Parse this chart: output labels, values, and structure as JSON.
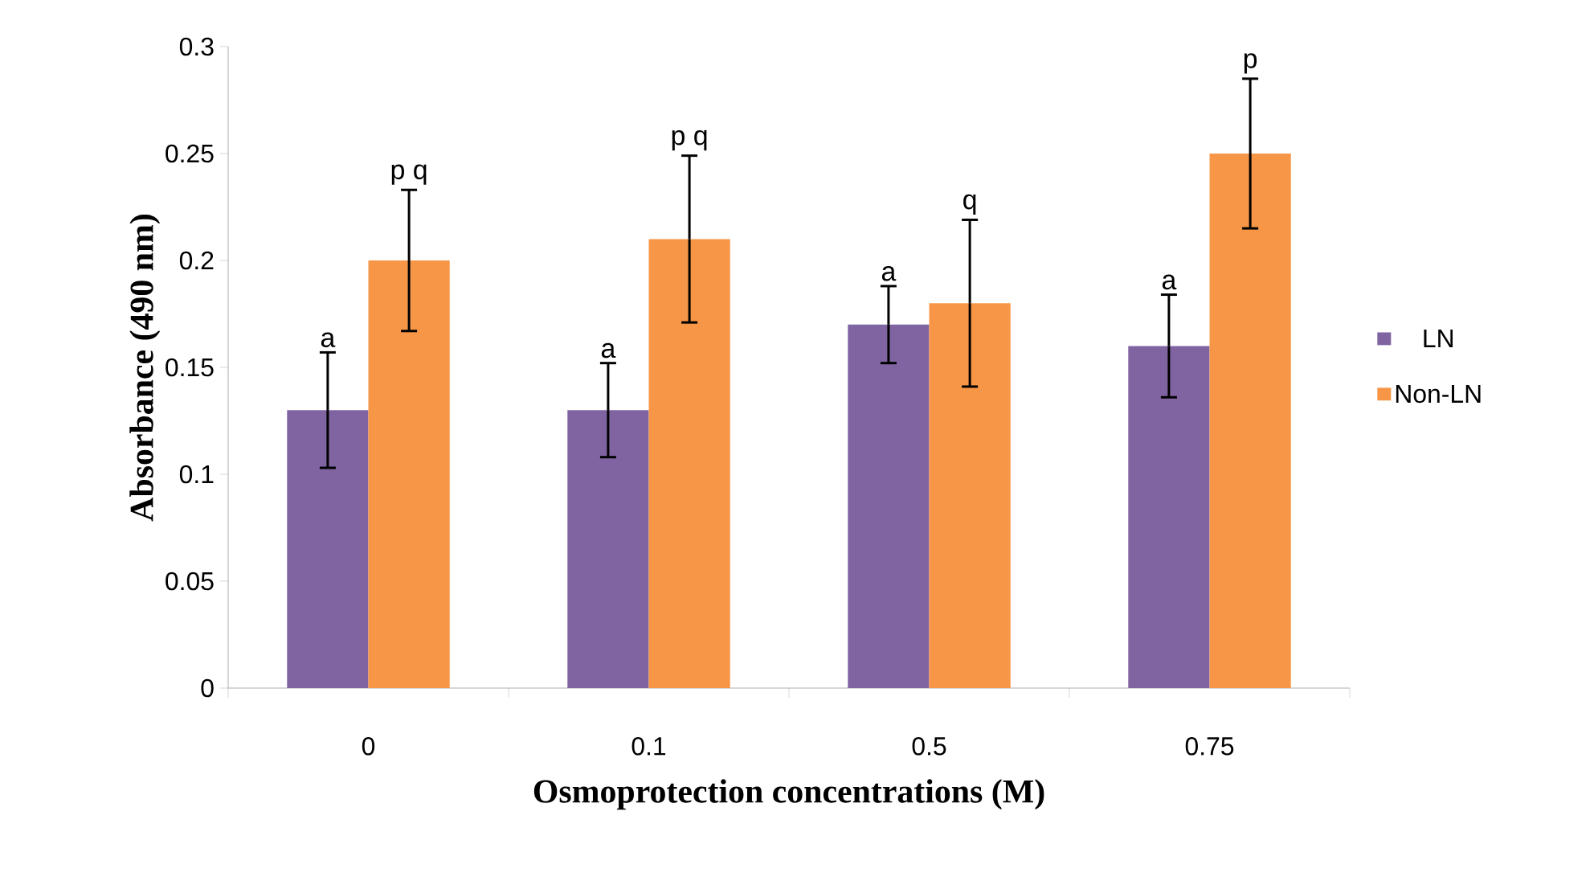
{
  "chart_data": {
    "type": "bar",
    "xlabel": "Osmoprotection concentrations (M)",
    "ylabel": "Absorbance (490 nm)",
    "categories": [
      "0",
      "0.1",
      "0.5",
      "0.75"
    ],
    "series": [
      {
        "name": "LN",
        "color": "#8064a2",
        "values": [
          0.13,
          0.13,
          0.17,
          0.16
        ],
        "errors": [
          0.027,
          0.022,
          0.018,
          0.024
        ]
      },
      {
        "name": "Non-LN",
        "color": "#f79646",
        "values": [
          0.2,
          0.21,
          0.18,
          0.25
        ],
        "errors": [
          0.033,
          0.039,
          0.039,
          0.035
        ]
      }
    ],
    "ylim": [
      0,
      0.3
    ],
    "yticks": [
      0,
      0.05,
      0.1,
      0.15,
      0.2,
      0.25,
      0.3
    ],
    "annotations": [
      "a",
      "p q",
      "a",
      "p q",
      "a",
      "q",
      "a",
      "p"
    ],
    "legend": "right",
    "grid": false
  }
}
